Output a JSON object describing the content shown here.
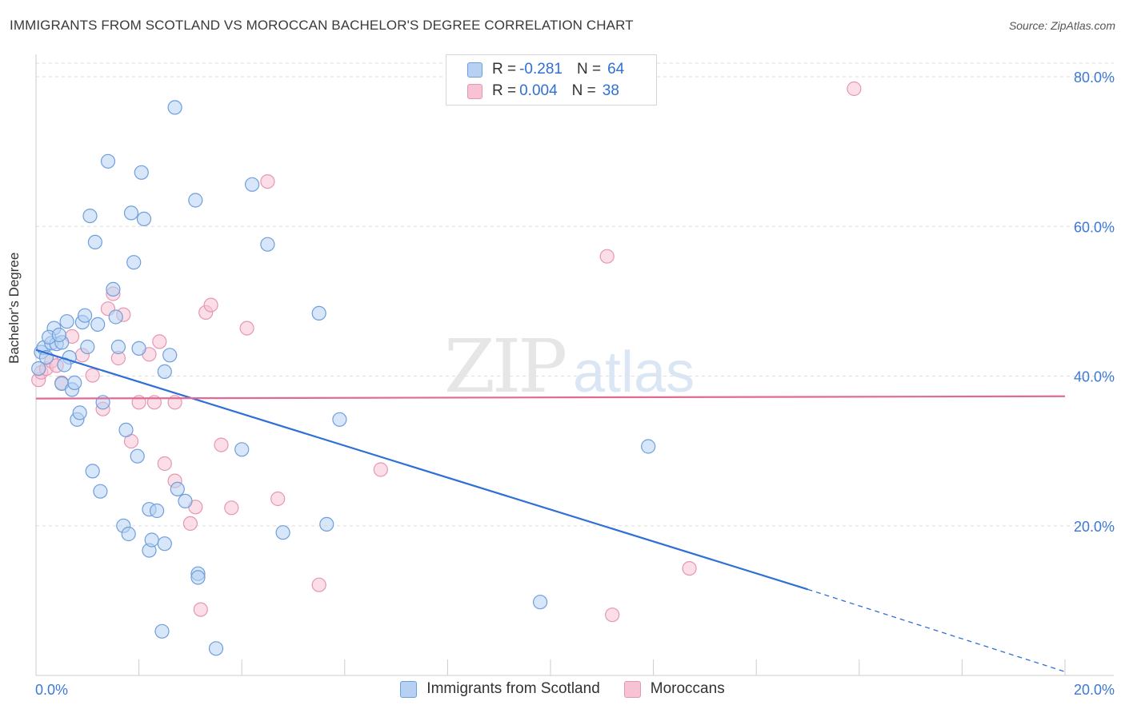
{
  "title": "IMMIGRANTS FROM SCOTLAND VS MOROCCAN BACHELOR'S DEGREE CORRELATION CHART",
  "source": "Source: ZipAtlas.com",
  "watermark": {
    "zip": "ZIP",
    "atlas": "atlas"
  },
  "legend_top": {
    "rows": [
      {
        "r_label": "R =",
        "r_value": "-0.281",
        "n_label": "N =",
        "n_value": "64"
      },
      {
        "r_label": "R =",
        "r_value": "0.004",
        "n_label": "N =",
        "n_value": "38"
      }
    ]
  },
  "colors": {
    "blue_fill": "#b7d1f3",
    "blue_stroke": "#6e9fdc",
    "blue_line": "#2f6fd6",
    "pink_fill": "#f7c3d4",
    "pink_stroke": "#e597b2",
    "pink_line": "#e06a94",
    "grid": "#dddddd",
    "axis_text": "#3c78d8"
  },
  "chart_data": {
    "type": "scatter",
    "title": "IMMIGRANTS FROM SCOTLAND VS MOROCCAN BACHELOR'S DEGREE CORRELATION CHART",
    "xlabel": "",
    "ylabel": "Bachelor's Degree",
    "xlim": [
      0,
      20
    ],
    "ylim": [
      0,
      80
    ],
    "x_tick_labels": [
      "0.0%",
      "20.0%"
    ],
    "y_tick_labels": [
      "20.0%",
      "40.0%",
      "60.0%",
      "80.0%"
    ],
    "y_ticks": [
      20,
      40,
      60,
      80
    ],
    "series": [
      {
        "name": "Immigrants from Scotland",
        "color": "blue",
        "trend": {
          "x": [
            0,
            15
          ],
          "y": [
            43.5,
            11.5
          ],
          "dashed_to": [
            20,
            0.5
          ]
        },
        "points": [
          [
            0.1,
            43.2
          ],
          [
            0.15,
            43.8
          ],
          [
            0.2,
            42.5
          ],
          [
            0.3,
            44.4
          ],
          [
            0.35,
            46.4
          ],
          [
            0.4,
            44.3
          ],
          [
            0.5,
            44.5
          ],
          [
            0.5,
            39
          ],
          [
            0.6,
            47.3
          ],
          [
            0.65,
            42.5
          ],
          [
            0.7,
            38.2
          ],
          [
            0.75,
            39.1
          ],
          [
            0.8,
            34.2
          ],
          [
            0.85,
            35.1
          ],
          [
            0.9,
            47.2
          ],
          [
            1.0,
            43.9
          ],
          [
            1.05,
            61.4
          ],
          [
            1.1,
            27.3
          ],
          [
            1.15,
            57.9
          ],
          [
            1.2,
            46.9
          ],
          [
            1.25,
            24.6
          ],
          [
            1.3,
            36.5
          ],
          [
            1.4,
            68.7
          ],
          [
            1.5,
            51.6
          ],
          [
            1.55,
            47.9
          ],
          [
            1.6,
            43.9
          ],
          [
            1.7,
            20
          ],
          [
            1.75,
            32.8
          ],
          [
            1.8,
            18.9
          ],
          [
            1.85,
            61.8
          ],
          [
            1.9,
            55.2
          ],
          [
            1.97,
            29.3
          ],
          [
            2.0,
            43.7
          ],
          [
            2.05,
            67.2
          ],
          [
            2.1,
            61
          ],
          [
            2.2,
            22.2
          ],
          [
            2.2,
            16.7
          ],
          [
            2.25,
            18.1
          ],
          [
            2.35,
            22
          ],
          [
            2.5,
            40.6
          ],
          [
            2.5,
            17.6
          ],
          [
            2.45,
            5.9
          ],
          [
            2.6,
            42.8
          ],
          [
            2.7,
            75.9
          ],
          [
            2.75,
            24.9
          ],
          [
            2.9,
            23.3
          ],
          [
            3.1,
            63.5
          ],
          [
            3.15,
            13.6
          ],
          [
            3.15,
            13.1
          ],
          [
            3.5,
            3.6
          ],
          [
            4.0,
            30.2
          ],
          [
            4.2,
            65.6
          ],
          [
            4.5,
            57.6
          ],
          [
            4.8,
            19.1
          ],
          [
            5.5,
            48.4
          ],
          [
            5.65,
            20.2
          ],
          [
            5.9,
            34.2
          ],
          [
            9.8,
            9.8
          ],
          [
            11.9,
            30.6
          ],
          [
            0.05,
            41.0
          ],
          [
            0.25,
            45.2
          ],
          [
            0.45,
            45.5
          ],
          [
            0.55,
            41.5
          ],
          [
            0.95,
            48.1
          ]
        ]
      },
      {
        "name": "Moroccans",
        "color": "pink",
        "trend": {
          "x": [
            0,
            20
          ],
          "y": [
            37,
            37.3
          ]
        },
        "points": [
          [
            0.05,
            39.5
          ],
          [
            0.1,
            40.5
          ],
          [
            0.2,
            41
          ],
          [
            0.3,
            42
          ],
          [
            0.4,
            41.4
          ],
          [
            0.5,
            39.1
          ],
          [
            0.7,
            45.3
          ],
          [
            0.9,
            42.8
          ],
          [
            1.1,
            40.1
          ],
          [
            1.3,
            35.6
          ],
          [
            1.4,
            49
          ],
          [
            1.5,
            51
          ],
          [
            1.6,
            42.4
          ],
          [
            1.7,
            48.2
          ],
          [
            1.85,
            31.3
          ],
          [
            2.0,
            36.5
          ],
          [
            2.2,
            42.9
          ],
          [
            2.3,
            36.5
          ],
          [
            2.4,
            44.6
          ],
          [
            2.5,
            28.3
          ],
          [
            2.7,
            26
          ],
          [
            2.7,
            36.5
          ],
          [
            3.0,
            20.3
          ],
          [
            3.1,
            22.5
          ],
          [
            3.2,
            8.8
          ],
          [
            3.3,
            48.5
          ],
          [
            3.4,
            49.5
          ],
          [
            3.6,
            30.8
          ],
          [
            3.8,
            22.4
          ],
          [
            4.1,
            46.4
          ],
          [
            4.5,
            66
          ],
          [
            4.7,
            23.6
          ],
          [
            5.5,
            12.1
          ],
          [
            6.7,
            27.5
          ],
          [
            11.1,
            56
          ],
          [
            11.2,
            8.1
          ],
          [
            12.7,
            14.3
          ],
          [
            15.9,
            78.4
          ]
        ]
      }
    ]
  },
  "legend_bottom": [
    {
      "label": "Immigrants from Scotland",
      "color": "blue"
    },
    {
      "label": "Moroccans",
      "color": "pink"
    }
  ]
}
